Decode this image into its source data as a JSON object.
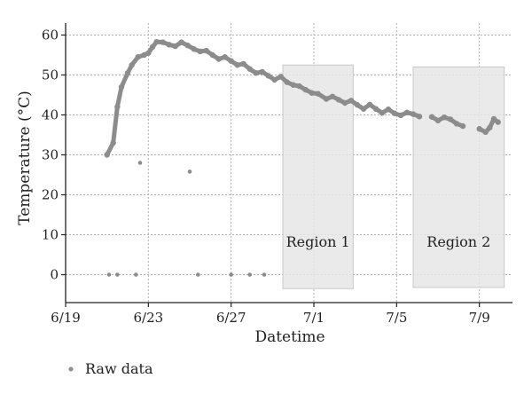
{
  "chart_data": {
    "type": "scatter",
    "xlabel": "Datetime",
    "ylabel": "Temperature (°C)",
    "x_ticks": [
      "6/19",
      "6/23",
      "6/27",
      "7/1",
      "7/5",
      "7/9"
    ],
    "x_tick_days": [
      0,
      4,
      8,
      12,
      16,
      20
    ],
    "xlim_days": [
      0,
      21.6
    ],
    "y_ticks": [
      0,
      10,
      20,
      30,
      40,
      50,
      60
    ],
    "ylim": [
      -7,
      63
    ],
    "grid": true,
    "legend": {
      "position": "bottom-left",
      "entries": [
        "Raw data"
      ]
    },
    "colors": {
      "series": "#8c8c8c",
      "region_fill": "#e6e6e6",
      "region_edge": "#c8c8c8",
      "grid": "#b0b0b0"
    },
    "regions": [
      {
        "label": "Region 1",
        "x_start_day": 10.5,
        "x_end_day": 13.9,
        "y_bottom": -3.5,
        "y_top": 52.5
      },
      {
        "label": "Region 2",
        "x_start_day": 16.8,
        "x_end_day": 21.2,
        "y_bottom": -3.2,
        "y_top": 52.0
      }
    ],
    "series": [
      {
        "name": "Raw data",
        "points": [
          [
            2.0,
            30.0
          ],
          [
            2.3,
            33.0
          ],
          [
            2.5,
            42.0
          ],
          [
            2.7,
            47.0
          ],
          [
            3.0,
            50.5
          ],
          [
            3.2,
            52.5
          ],
          [
            3.5,
            54.5
          ],
          [
            3.8,
            55.0
          ],
          [
            4.0,
            55.5
          ],
          [
            4.2,
            57.0
          ],
          [
            4.4,
            58.3
          ],
          [
            4.7,
            58.2
          ],
          [
            5.0,
            57.6
          ],
          [
            5.3,
            57.2
          ],
          [
            5.6,
            58.2
          ],
          [
            5.9,
            57.4
          ],
          [
            6.2,
            56.5
          ],
          [
            6.5,
            55.9
          ],
          [
            6.8,
            56.1
          ],
          [
            7.1,
            55.0
          ],
          [
            7.4,
            54.0
          ],
          [
            7.7,
            54.5
          ],
          [
            8.0,
            53.5
          ],
          [
            8.3,
            52.5
          ],
          [
            8.6,
            52.8
          ],
          [
            8.9,
            51.5
          ],
          [
            9.2,
            50.5
          ],
          [
            9.5,
            50.8
          ],
          [
            9.8,
            49.8
          ],
          [
            10.1,
            48.8
          ],
          [
            10.4,
            49.6
          ],
          [
            10.7,
            48.2
          ],
          [
            11.0,
            47.5
          ],
          [
            11.3,
            47.2
          ],
          [
            11.6,
            46.3
          ],
          [
            11.9,
            45.5
          ],
          [
            12.2,
            45.3
          ],
          [
            12.6,
            44.0
          ],
          [
            12.9,
            44.6
          ],
          [
            13.2,
            43.8
          ],
          [
            13.5,
            43.0
          ],
          [
            13.8,
            43.6
          ],
          [
            14.1,
            42.5
          ],
          [
            14.4,
            41.5
          ],
          [
            14.7,
            42.6
          ],
          [
            15.0,
            41.5
          ],
          [
            15.3,
            40.5
          ],
          [
            15.6,
            41.4
          ],
          [
            15.9,
            40.4
          ],
          [
            16.2,
            39.9
          ],
          [
            16.5,
            40.6
          ],
          [
            16.8,
            40.2
          ],
          [
            17.1,
            39.6
          ],
          [
            17.7,
            39.5
          ],
          [
            18.0,
            38.6
          ],
          [
            18.3,
            39.4
          ],
          [
            18.6,
            38.9
          ],
          [
            18.9,
            37.8
          ],
          [
            19.2,
            37.2
          ],
          [
            20.0,
            36.5
          ],
          [
            20.3,
            35.7
          ],
          [
            20.5,
            36.8
          ],
          [
            20.7,
            39.0
          ],
          [
            20.9,
            38.2
          ],
          [
            2.1,
            0.0
          ],
          [
            2.5,
            0.0
          ],
          [
            3.4,
            0.0
          ],
          [
            3.6,
            28.0
          ],
          [
            6.0,
            25.8
          ],
          [
            6.4,
            0.0
          ],
          [
            8.0,
            0.0
          ],
          [
            8.9,
            0.0
          ],
          [
            9.6,
            0.0
          ]
        ]
      }
    ]
  }
}
